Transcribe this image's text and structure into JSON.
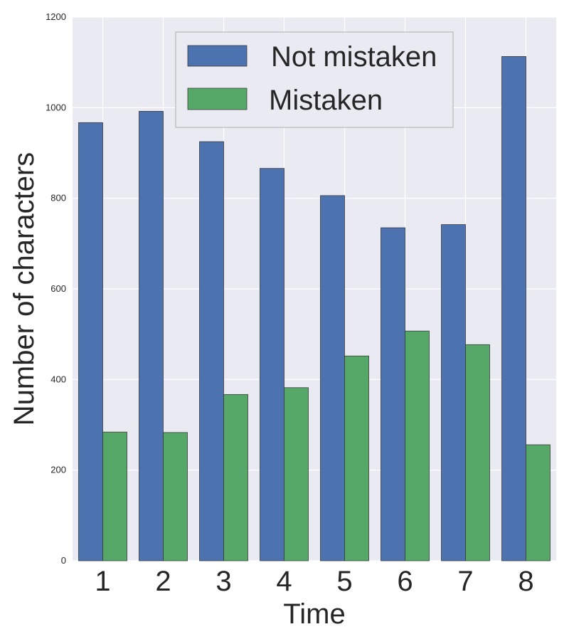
{
  "chart_data": {
    "type": "bar",
    "title": "",
    "xlabel": "Time",
    "ylabel": "Number of characters",
    "categories": [
      "1",
      "2",
      "3",
      "4",
      "5",
      "6",
      "7",
      "8"
    ],
    "yticks": [
      "0",
      "200",
      "400",
      "600",
      "800",
      "1000",
      "1200"
    ],
    "ylim": [
      0,
      1200
    ],
    "grid": true,
    "legend_position": "top-center",
    "series": [
      {
        "name": "Not mistaken",
        "color": "#4c72b0",
        "values": [
          967,
          992,
          925,
          866,
          806,
          735,
          742,
          1113
        ]
      },
      {
        "name": "Mistaken",
        "color": "#55a868",
        "values": [
          284,
          283,
          367,
          382,
          452,
          507,
          477,
          256
        ]
      }
    ]
  }
}
